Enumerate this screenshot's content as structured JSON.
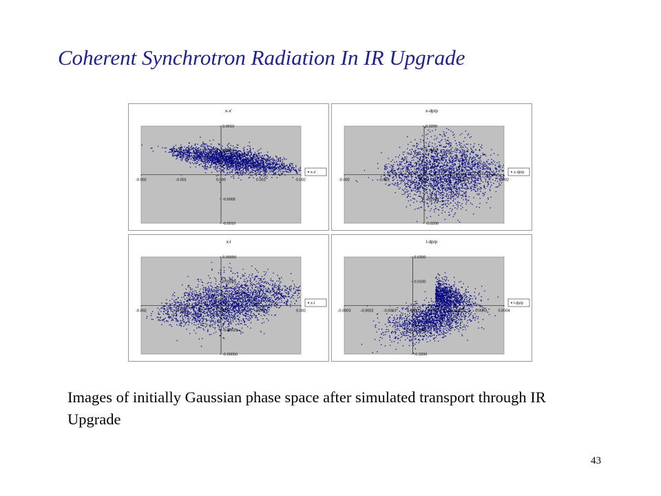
{
  "slide": {
    "title": "Coherent Synchrotron Radiation In IR Upgrade",
    "caption": "Images of initially Gaussian phase space after simulated transport through IR Upgrade",
    "page_number": "43"
  },
  "colors": {
    "points": "#0a0a80",
    "plot_area": "#c0c0c0",
    "title": "#1f1f8f"
  },
  "chart_data": [
    {
      "type": "scatter",
      "title": "x-x'",
      "legend": "x-x'",
      "legend_position": "right",
      "xlim": [
        -0.002,
        0.002
      ],
      "ylim": [
        -0.001,
        0.001
      ],
      "x_ticks": [
        "-0.002",
        "-0.001",
        "0.000",
        "0.001",
        "0.002"
      ],
      "y_ticks": [
        "0.0010",
        "0.0005",
        "-0.0005",
        "-0.0010"
      ],
      "y_tick_values": [
        0.001,
        0.0005,
        -0.0005,
        -0.001
      ],
      "distribution": {
        "shape": "tilted ellipse",
        "x_center": 0.00025,
        "x_range": [
          -0.0013,
          0.002
        ],
        "y_at_xmin": 0.0005,
        "y_at_xmax": 0.0001,
        "y_spread": 9e-05
      }
    },
    {
      "type": "scatter",
      "title": "x-dp/p",
      "legend": "x-dp/p",
      "legend_position": "right",
      "xlim": [
        -0.002,
        0.002
      ],
      "ylim": [
        -0.02,
        0.02
      ],
      "x_ticks": [
        "-0.002",
        "-0.001",
        "0.000",
        "0.001",
        "0.002"
      ],
      "y_ticks": [
        "0.0200",
        "0.0100",
        "-0.0100",
        "-0.0200"
      ],
      "y_tick_values": [
        0.02,
        0.01,
        -0.01,
        -0.02
      ],
      "distribution": {
        "shape": "broad ellipse",
        "x_center": 0.0005,
        "x_range": [
          -0.001,
          0.002
        ],
        "y_center": 0.0005,
        "y_spread": 0.0055
      }
    },
    {
      "type": "scatter",
      "title": "x-l",
      "legend": "x-l",
      "legend_position": "right",
      "xlim": [
        -0.002,
        0.002
      ],
      "ylim": [
        -0.0005,
        0.0005
      ],
      "x_ticks": [
        "-0.002",
        "-0.001",
        "0.000",
        "0.001",
        "0.002"
      ],
      "y_ticks": [
        "0.00050",
        "0.00025",
        "-0.00025",
        "-0.00050"
      ],
      "y_tick_values": [
        0.0005,
        0.00025,
        -0.00025,
        -0.0005
      ],
      "distribution": {
        "shape": "tilted ellipse",
        "x_center": 0.0002,
        "x_range": [
          -0.0016,
          0.002
        ],
        "y_at_xmin": -8e-05,
        "y_at_xmax": 0.00014,
        "y_spread": 9e-05
      }
    },
    {
      "type": "scatter",
      "title": "l-dp/p",
      "legend": "l-dp/p",
      "legend_position": "right",
      "xlim": [
        -0.0003,
        0.0004
      ],
      "ylim": [
        -0.02,
        0.02
      ],
      "x_ticks": [
        "-0.0003",
        "-0.0002",
        "-0.0001",
        "0.0000",
        "0.0001",
        "0.0002",
        "0.0003",
        "0.0004"
      ],
      "y_ticks": [
        "0.0200",
        "0.0100",
        "-0.0100",
        "-0.0200"
      ],
      "y_tick_values": [
        0.02,
        0.01,
        -0.01,
        -0.02
      ],
      "distribution": {
        "shape": "chevron",
        "x_center": 8e-05,
        "x_range": [
          -0.00022,
          0.00028
        ],
        "y_lower_band": -0.006,
        "y_upper_arm": 0.005,
        "y_spread": 0.0035
      }
    }
  ]
}
